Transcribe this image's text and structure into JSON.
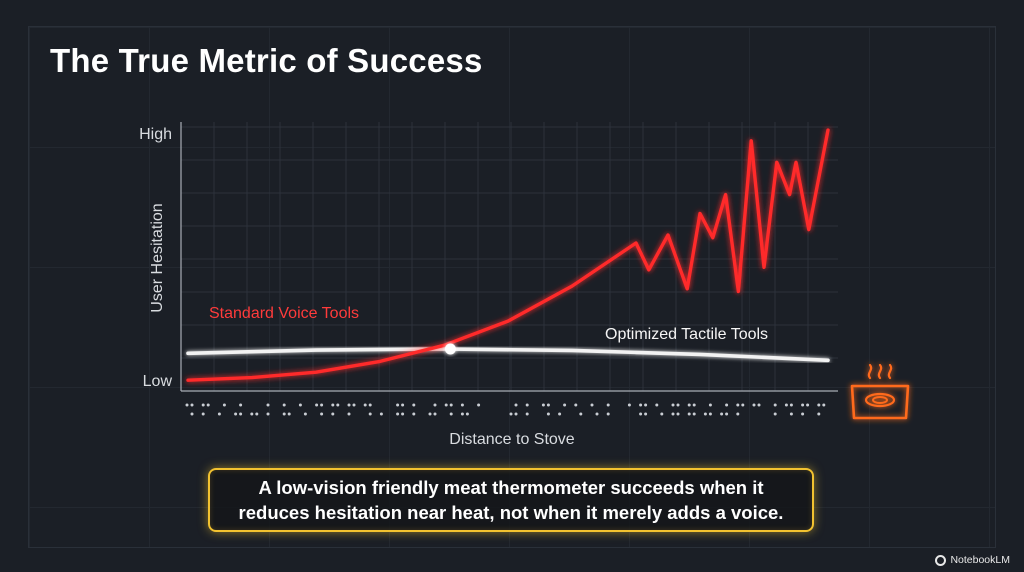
{
  "title": "The True Metric of Success",
  "chart_data": {
    "type": "line",
    "xlabel": "Distance to Stove",
    "ylabel": "User Hesitation",
    "xlim": [
      0,
      100
    ],
    "ylim": [
      0,
      100
    ],
    "y_tick_labels": [
      {
        "label": "Low",
        "value": 4
      },
      {
        "label": "High",
        "value": 96
      }
    ],
    "series": [
      {
        "name": "Standard Voice Tools",
        "color": "#ff2a2a",
        "x": [
          0,
          10,
          20,
          30,
          40,
          50,
          60,
          70,
          72,
          75,
          78,
          80,
          82,
          84,
          86,
          88,
          90,
          92,
          94,
          95,
          97,
          100
        ],
        "values": [
          4,
          5,
          7,
          11,
          17,
          26,
          39,
          55,
          45,
          58,
          38,
          66,
          57,
          73,
          37,
          93,
          46,
          85,
          73,
          85,
          60,
          97
        ]
      },
      {
        "name": "Optimized Tactile Tools",
        "color": "#f2f2f2",
        "x": [
          0,
          20,
          40,
          60,
          80,
          100
        ],
        "values": [
          14,
          15.2,
          15.6,
          15.1,
          13.6,
          11.4
        ]
      }
    ],
    "highlight_point": {
      "x": 41,
      "y": 15.6
    },
    "legend": "inline labels"
  },
  "callout": {
    "line1": "A low-vision friendly meat thermometer succeeds when it",
    "line2": "reduces hesitation near heat, not when it merely adds a voice."
  },
  "icons": {
    "stove": "hot-stove-icon",
    "braille": "braille-dots-icon"
  },
  "brand": "NotebookLM"
}
